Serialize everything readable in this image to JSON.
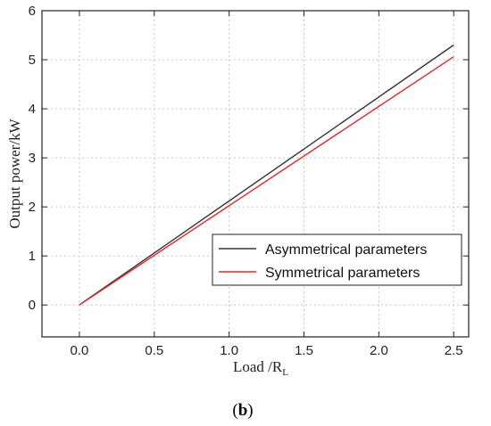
{
  "chart_data": {
    "type": "line",
    "xlabel": "Load /R",
    "xlabel_sub": "L",
    "ylabel": "Output power/kW",
    "xlim": [
      -0.25,
      2.6
    ],
    "ylim": [
      -0.65,
      6
    ],
    "xticks": [
      "0.0",
      "0.5",
      "1.0",
      "1.5",
      "2.0",
      "2.5"
    ],
    "xtick_values": [
      0,
      0.5,
      1.0,
      1.5,
      2.0,
      2.5
    ],
    "yticks": [
      "0",
      "1",
      "2",
      "3",
      "4",
      "5",
      "6"
    ],
    "ytick_values": [
      0,
      1,
      2,
      3,
      4,
      5,
      6
    ],
    "grid": true,
    "legend_position": "lower-right",
    "series": [
      {
        "name": "Asymmetrical parameters",
        "color": "#333333",
        "x": [
          0,
          2.5
        ],
        "y": [
          0,
          5.3
        ]
      },
      {
        "name": "Symmetrical parameters",
        "color": "#ee2222",
        "x": [
          0,
          2.5
        ],
        "y": [
          0,
          5.06
        ]
      }
    ]
  },
  "caption": {
    "open": "(",
    "letter": "b",
    "close": ")"
  }
}
